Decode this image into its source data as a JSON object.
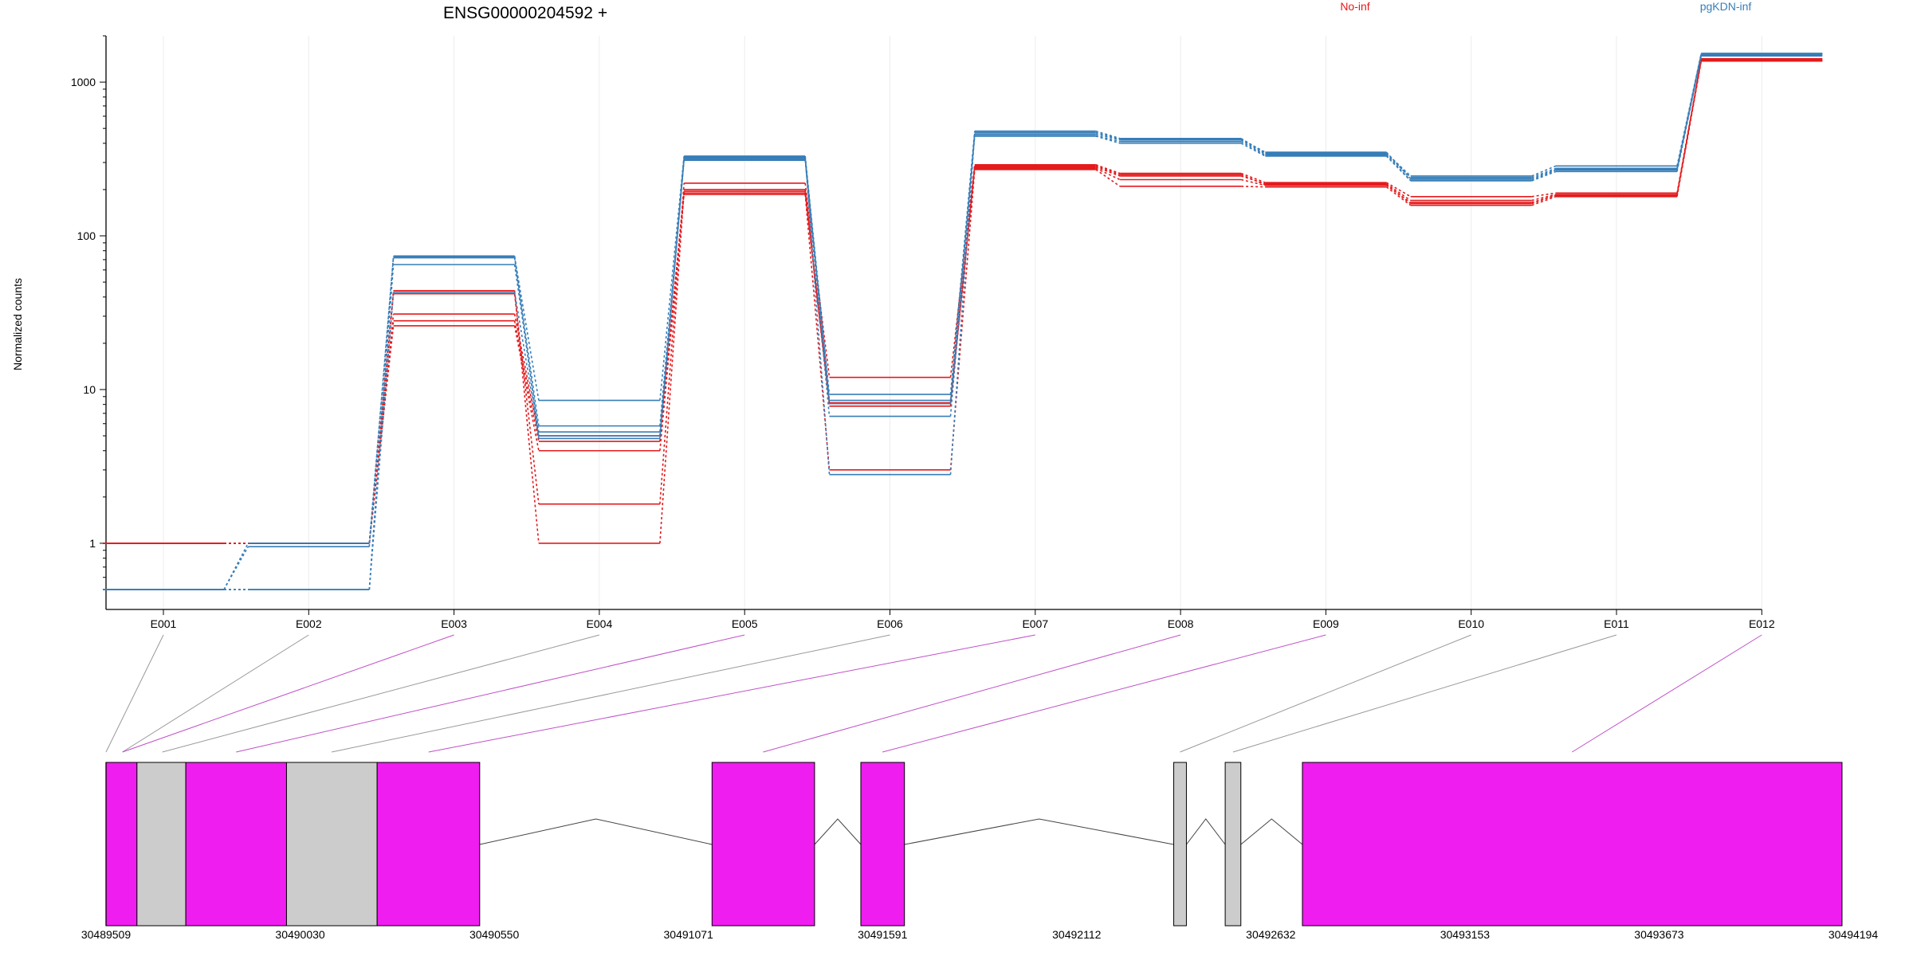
{
  "chart_data": {
    "type": "line",
    "title": "ENSG00000204592 +",
    "ylabel": "Normalized counts",
    "xlabel": "",
    "y_scale": "log",
    "ylim": [
      0.5,
      2000
    ],
    "y_ticks": [
      1,
      10,
      100,
      1000
    ],
    "y_tick_labels": [
      "1",
      "10",
      "100",
      "1000"
    ],
    "grid": "vertical",
    "legend_placement": "top",
    "categories": [
      "E001",
      "E002",
      "E003",
      "E004",
      "E005",
      "E006",
      "E007",
      "E008",
      "E009",
      "E010",
      "E011",
      "E012"
    ],
    "colors": {
      "No-inf": "#e41a1c",
      "pgKDN-inf": "#377eb8",
      "exon_counted": "#f01df0",
      "exon_other": "#cccccc",
      "connector_counted": "#c050c8",
      "connector_other": "#999999"
    },
    "groups": [
      {
        "name": "No-inf",
        "color": "#e41a1c",
        "samples": [
          {
            "values": [
              1,
              1,
              42,
              1.8,
              220,
              12,
              290,
              255,
              222,
              180,
              190,
              1420
            ]
          },
          {
            "values": [
              1,
              1,
              31,
              5.0,
              195,
              8.1,
              280,
              245,
              218,
              170,
              186,
              1400
            ]
          },
          {
            "values": [
              1,
              1,
              28,
              4.6,
              190,
              7.8,
              275,
              232,
              213,
              165,
              183,
              1380
            ]
          },
          {
            "values": [
              1,
              1,
              26,
              4.0,
              186,
              3.0,
              270,
              210,
              208,
              158,
              180,
              1370
            ]
          },
          {
            "values": [
              1,
              1,
              44,
              1.0,
              200,
              8.2,
              285,
              250,
              215,
              162,
              184,
              1390
            ]
          }
        ]
      },
      {
        "name": "pgKDN-inf",
        "color": "#377eb8",
        "samples": [
          {
            "values": [
              0.5,
              1,
              73,
              8.5,
              330,
              9.3,
              480,
              430,
              345,
              245,
              285,
              1540
            ]
          },
          {
            "values": [
              0.5,
              0.95,
              72,
              5.8,
              320,
              8.5,
              460,
              420,
              340,
              240,
              275,
              1520
            ]
          },
          {
            "values": [
              0.5,
              0.5,
              65,
              5.3,
              315,
              6.7,
              450,
              410,
              335,
              230,
              268,
              1500
            ]
          },
          {
            "values": [
              0.5,
              0.5,
              74,
              4.8,
              310,
              8.1,
              445,
              400,
              330,
              228,
              262,
              1480
            ]
          },
          {
            "values": [
              0.5,
              0.5,
              43,
              5.0,
              325,
              2.8,
              470,
              425,
              350,
              235,
              270,
              1530
            ]
          }
        ]
      }
    ],
    "gene_model": {
      "coordinate_labels": [
        "30489509",
        "30490030",
        "30490550",
        "30491071",
        "30491591",
        "30492112",
        "30492632",
        "30493153",
        "30493673",
        "30494194"
      ],
      "coordinate_range": [
        30489509,
        30494194
      ],
      "exons": [
        {
          "start": 30489509,
          "end": 30489592,
          "counted": true
        },
        {
          "start": 30489592,
          "end": 30489723,
          "counted": false
        },
        {
          "start": 30489723,
          "end": 30489993,
          "counted": true
        },
        {
          "start": 30489993,
          "end": 30490236,
          "counted": false
        },
        {
          "start": 30490236,
          "end": 30490511,
          "counted": true
        },
        {
          "start": 30491134,
          "end": 30491409,
          "counted": true
        },
        {
          "start": 30491533,
          "end": 30491650,
          "counted": true
        },
        {
          "start": 30492372,
          "end": 30492406,
          "counted": false
        },
        {
          "start": 30492510,
          "end": 30492552,
          "counted": false
        },
        {
          "start": 30492717,
          "end": 30494164,
          "counted": true
        }
      ],
      "introns": [
        [
          30490511,
          30491134
        ],
        [
          30491409,
          30491533
        ],
        [
          30491650,
          30492372
        ],
        [
          30492406,
          30492510
        ],
        [
          30492552,
          30492717
        ]
      ],
      "bin_links": [
        {
          "bin": "E001",
          "position": 30489509,
          "counted": false
        },
        {
          "bin": "E002",
          "position": 30489553,
          "counted": false
        },
        {
          "bin": "E003",
          "position": 30489553,
          "counted": true
        },
        {
          "bin": "E004",
          "position": 30489660,
          "counted": false
        },
        {
          "bin": "E005",
          "position": 30489858,
          "counted": true
        },
        {
          "bin": "E006",
          "position": 30490114,
          "counted": false
        },
        {
          "bin": "E007",
          "position": 30490374,
          "counted": true
        },
        {
          "bin": "E008",
          "position": 30491271,
          "counted": true
        },
        {
          "bin": "E009",
          "position": 30491591,
          "counted": true
        },
        {
          "bin": "E010",
          "position": 30492389,
          "counted": false
        },
        {
          "bin": "E011",
          "position": 30492531,
          "counted": false
        },
        {
          "bin": "E012",
          "position": 30493440,
          "counted": true
        }
      ]
    }
  }
}
